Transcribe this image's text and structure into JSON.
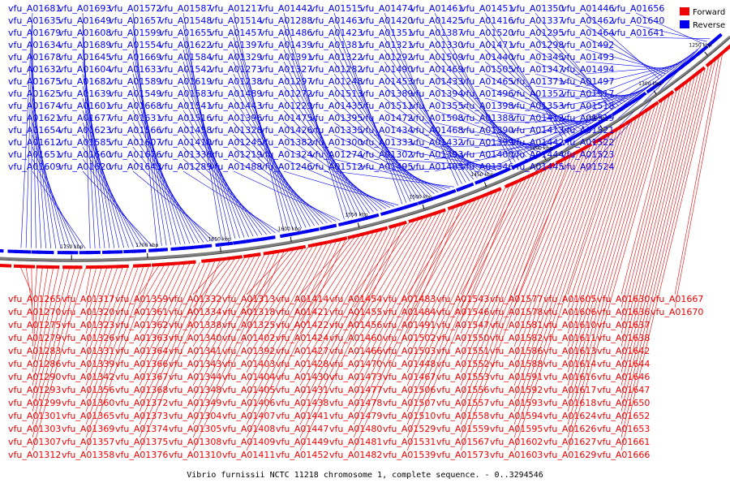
{
  "caption": "Vibrio furnissii NCTC 11218 chromosome 1, complete sequence. - 0..3294546",
  "legend": [
    {
      "label": "Forward",
      "color": "#ee0000"
    },
    {
      "label": "Reverse",
      "color": "#0000ee"
    }
  ],
  "colors": {
    "forward": "#ee0000",
    "reverse": "#0000ee",
    "backbone": "#808080"
  },
  "scale_ticks": [
    "1250 kbp",
    "1300 kbp",
    "1350 kbp",
    "1400 kbp",
    "1450 kbp",
    "1500 kbp",
    "1550 kbp",
    "1600 kbp",
    "1650 kbp",
    "1700 kbp",
    "1750 kbp"
  ],
  "reverse_genes": [
    "vfu_A01681",
    "vfu_A01635",
    "vfu_A01679",
    "vfu_A01634",
    "vfu_A01678",
    "vfu_A01632",
    "vfu_A01675",
    "vfu_A01625",
    "vfu_A01674",
    "vfu_A01621",
    "vfu_A01654",
    "vfu_A01612",
    "vfu_A01651",
    "vfu_A01609",
    "vfu_A01693",
    "vfu_A01649",
    "vfu_A01608",
    "vfu_A01689",
    "vfu_A01645",
    "vfu_A01604",
    "vfu_A01682",
    "vfu_A01639",
    "vfu_A01601",
    "vfu_A01677",
    "vfu_A01623",
    "vfu_A01585",
    "vfu_A01660",
    "vfu_A01620",
    "vfu_A01572",
    "vfu_A01657",
    "vfu_A01599",
    "vfu_A01554",
    "vfu_A01669",
    "vfu_A01633",
    "vfu_A01589",
    "vfu_A01549",
    "vfu_A01668",
    "vfu_A01631",
    "vfu_A01566",
    "vfu_A01607",
    "vfu_A01676",
    "vfu_A01643",
    "vfu_A01587",
    "vfu_A01548",
    "vfu_A01655",
    "vfu_A01622",
    "vfu_A01584",
    "vfu_A01542",
    "vfu_A01619",
    "vfu_A01583",
    "vfu_A01541",
    "vfu_A01516",
    "vfu_A01458",
    "vfu_A01410",
    "vfu_A01336",
    "vfu_A01289",
    "vfu_A01217",
    "vfu_A01514",
    "vfu_A01457",
    "vfu_A01397",
    "vfu_A01329",
    "vfu_A01273",
    "vfu_A01238",
    "vfu_A01489",
    "vfu_A01443",
    "vfu_A01396",
    "vfu_A01328",
    "vfu_A01245",
    "vfu_A01219",
    "vfu_A01488",
    "vfu_A01442",
    "vfu_A01288",
    "vfu_A01486",
    "vfu_A01439",
    "vfu_A01391",
    "vfu_A01327",
    "vfu_A01297",
    "vfu_A01272",
    "vfu_A01229",
    "vfu_A01475",
    "vfu_A01426",
    "vfu_A01382",
    "vfu_A01324",
    "vfu_A01246",
    "vfu_A01515",
    "vfu_A01463",
    "vfu_A01423",
    "vfu_A01381",
    "vfu_A01322",
    "vfu_A01282",
    "vfu_A01248",
    "vfu_A01513",
    "vfu_A01435",
    "vfu_A01395",
    "vfu_A01335",
    "vfu_A01300",
    "vfu_A01274",
    "vfu_A01512",
    "vfu_A01474",
    "vfu_A01420",
    "vfu_A01351",
    "vfu_A01321",
    "vfu_A01292",
    "vfu_A01490",
    "vfu_A01453",
    "vfu_A01389",
    "vfu_A01511",
    "vfu_A01472",
    "vfu_A01434",
    "vfu_A01333",
    "vfu_A01302",
    "vfu_A01495",
    "vfu_A01461",
    "vfu_A01425",
    "vfu_A01387",
    "vfu_A01330",
    "vfu_A01509",
    "vfu_A01469",
    "vfu_A01433",
    "vfu_A01394",
    "vfu_A01355",
    "vfu_A01508",
    "vfu_A01468",
    "vfu_A01432",
    "vfu_A01393",
    "vfu_A01485",
    "vfu_A01451",
    "vfu_A01416",
    "vfu_A01520",
    "vfu_A01471",
    "vfu_A01440",
    "vfu_A01505",
    "vfu_A01465",
    "vfu_A01496",
    "vfu_A01398",
    "vfu_A01388",
    "vfu_A01390",
    "vfu_A01399",
    "vfu_A01400",
    "vfu_A01346",
    "vfu_A01350",
    "vfu_A01337",
    "vfu_A01295",
    "vfu_A01298",
    "vfu_A01345",
    "vfu_A01347",
    "vfu_A01371",
    "vfu_A01352",
    "vfu_A01353",
    "vfu_A01412",
    "vfu_A01413",
    "vfu_A01442",
    "vfu_A01444",
    "vfu_A01445",
    "vfu_A01446",
    "vfu_A01462",
    "vfu_A01464",
    "vfu_A01492",
    "vfu_A01493",
    "vfu_A01494",
    "vfu_A01497",
    "vfu_A01517",
    "vfu_A01518",
    "vfu_A01519",
    "vfu_A01521",
    "vfu_A01522",
    "vfu_A01523",
    "vfu_A01524",
    "vfu_A01656",
    "vfu_A01640",
    "vfu_A01641"
  ],
  "forward_genes": [
    "vfu_A01265",
    "vfu_A01270",
    "vfu_A01275",
    "vfu_A01279",
    "vfu_A01283",
    "vfu_A01286",
    "vfu_A01290",
    "vfu_A01293",
    "vfu_A01299",
    "vfu_A01301",
    "vfu_A01303",
    "vfu_A01307",
    "vfu_A01312",
    "vfu_A01317",
    "vfu_A01320",
    "vfu_A01323",
    "vfu_A01326",
    "vfu_A01331",
    "vfu_A01339",
    "vfu_A01342",
    "vfu_A01356",
    "vfu_A01360",
    "vfu_A01365",
    "vfu_A01369",
    "vfu_A01357",
    "vfu_A01358",
    "vfu_A01359",
    "vfu_A01361",
    "vfu_A01362",
    "vfu_A01363",
    "vfu_A01364",
    "vfu_A01366",
    "vfu_A01367",
    "vfu_A01368",
    "vfu_A01372",
    "vfu_A01373",
    "vfu_A01374",
    "vfu_A01375",
    "vfu_A01376",
    "vfu_A01332",
    "vfu_A01334",
    "vfu_A01338",
    "vfu_A01340",
    "vfu_A01341",
    "vfu_A01343",
    "vfu_A01344",
    "vfu_A01348",
    "vfu_A01349",
    "vfu_A01304",
    "vfu_A01305",
    "vfu_A01308",
    "vfu_A01310",
    "vfu_A01313",
    "vfu_A01318",
    "vfu_A01325",
    "vfu_A01402",
    "vfu_A01392",
    "vfu_A01403",
    "vfu_A01404",
    "vfu_A01405",
    "vfu_A01406",
    "vfu_A01407",
    "vfu_A01408",
    "vfu_A01409",
    "vfu_A01411",
    "vfu_A01414",
    "vfu_A01421",
    "vfu_A01422",
    "vfu_A01424",
    "vfu_A01427",
    "vfu_A01428",
    "vfu_A01430",
    "vfu_A01431",
    "vfu_A01438",
    "vfu_A01441",
    "vfu_A01447",
    "vfu_A01449",
    "vfu_A01452",
    "vfu_A01454",
    "vfu_A01455",
    "vfu_A01456",
    "vfu_A01460",
    "vfu_A01466",
    "vfu_A01470",
    "vfu_A01473",
    "vfu_A01477",
    "vfu_A01478",
    "vfu_A01479",
    "vfu_A01480",
    "vfu_A01481",
    "vfu_A01482",
    "vfu_A01483",
    "vfu_A01484",
    "vfu_A01491",
    "vfu_A01502",
    "vfu_A01503",
    "vfu_A01448",
    "vfu_A01467",
    "vfu_A01506",
    "vfu_A01507",
    "vfu_A01510",
    "vfu_A01529",
    "vfu_A01531",
    "vfu_A01539",
    "vfu_A01543",
    "vfu_A01546",
    "vfu_A01547",
    "vfu_A01550",
    "vfu_A01551",
    "vfu_A01552",
    "vfu_A01553",
    "vfu_A01556",
    "vfu_A01557",
    "vfu_A01558",
    "vfu_A01559",
    "vfu_A01567",
    "vfu_A01573",
    "vfu_A01577",
    "vfu_A01578",
    "vfu_A01581",
    "vfu_A01582",
    "vfu_A01586",
    "vfu_A01588",
    "vfu_A01591",
    "vfu_A01592",
    "vfu_A01593",
    "vfu_A01594",
    "vfu_A01595",
    "vfu_A01602",
    "vfu_A01603",
    "vfu_A01605",
    "vfu_A01606",
    "vfu_A01610",
    "vfu_A01611",
    "vfu_A01613",
    "vfu_A01614",
    "vfu_A01616",
    "vfu_A01617",
    "vfu_A01618",
    "vfu_A01624",
    "vfu_A01626",
    "vfu_A01627",
    "vfu_A01629",
    "vfu_A01630",
    "vfu_A01636",
    "vfu_A01637",
    "vfu_A01638",
    "vfu_A01642",
    "vfu_A01644",
    "vfu_A01646",
    "vfu_A01647",
    "vfu_A01650",
    "vfu_A01652",
    "vfu_A01653",
    "vfu_A01661",
    "vfu_A01666",
    "vfu_A01667",
    "vfu_A01670"
  ]
}
